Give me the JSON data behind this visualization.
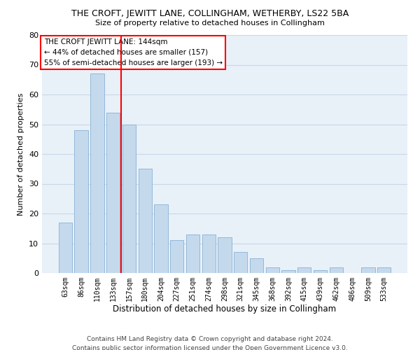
{
  "title": "THE CROFT, JEWITT LANE, COLLINGHAM, WETHERBY, LS22 5BA",
  "subtitle": "Size of property relative to detached houses in Collingham",
  "xlabel": "Distribution of detached houses by size in Collingham",
  "ylabel": "Number of detached properties",
  "categories": [
    "63sqm",
    "86sqm",
    "110sqm",
    "133sqm",
    "157sqm",
    "180sqm",
    "204sqm",
    "227sqm",
    "251sqm",
    "274sqm",
    "298sqm",
    "321sqm",
    "345sqm",
    "368sqm",
    "392sqm",
    "415sqm",
    "439sqm",
    "462sqm",
    "486sqm",
    "509sqm",
    "533sqm"
  ],
  "values": [
    17,
    48,
    67,
    54,
    50,
    35,
    23,
    11,
    13,
    13,
    12,
    7,
    5,
    2,
    1,
    2,
    1,
    2,
    0,
    2,
    2
  ],
  "bar_color": "#c5d9ed",
  "bar_edge_color": "#92b8d8",
  "red_line_x": 3.5,
  "red_line_label": "THE CROFT JEWITT LANE: 144sqm",
  "annotation_line1": "← 44% of detached houses are smaller (157)",
  "annotation_line2": "55% of semi-detached houses are larger (193) →",
  "ylim": [
    0,
    80
  ],
  "yticks": [
    0,
    10,
    20,
    30,
    40,
    50,
    60,
    70,
    80
  ],
  "grid_color": "#c8d8e8",
  "background_color": "#e8f0f8",
  "footer_line1": "Contains HM Land Registry data © Crown copyright and database right 2024.",
  "footer_line2": "Contains public sector information licensed under the Open Government Licence v3.0."
}
